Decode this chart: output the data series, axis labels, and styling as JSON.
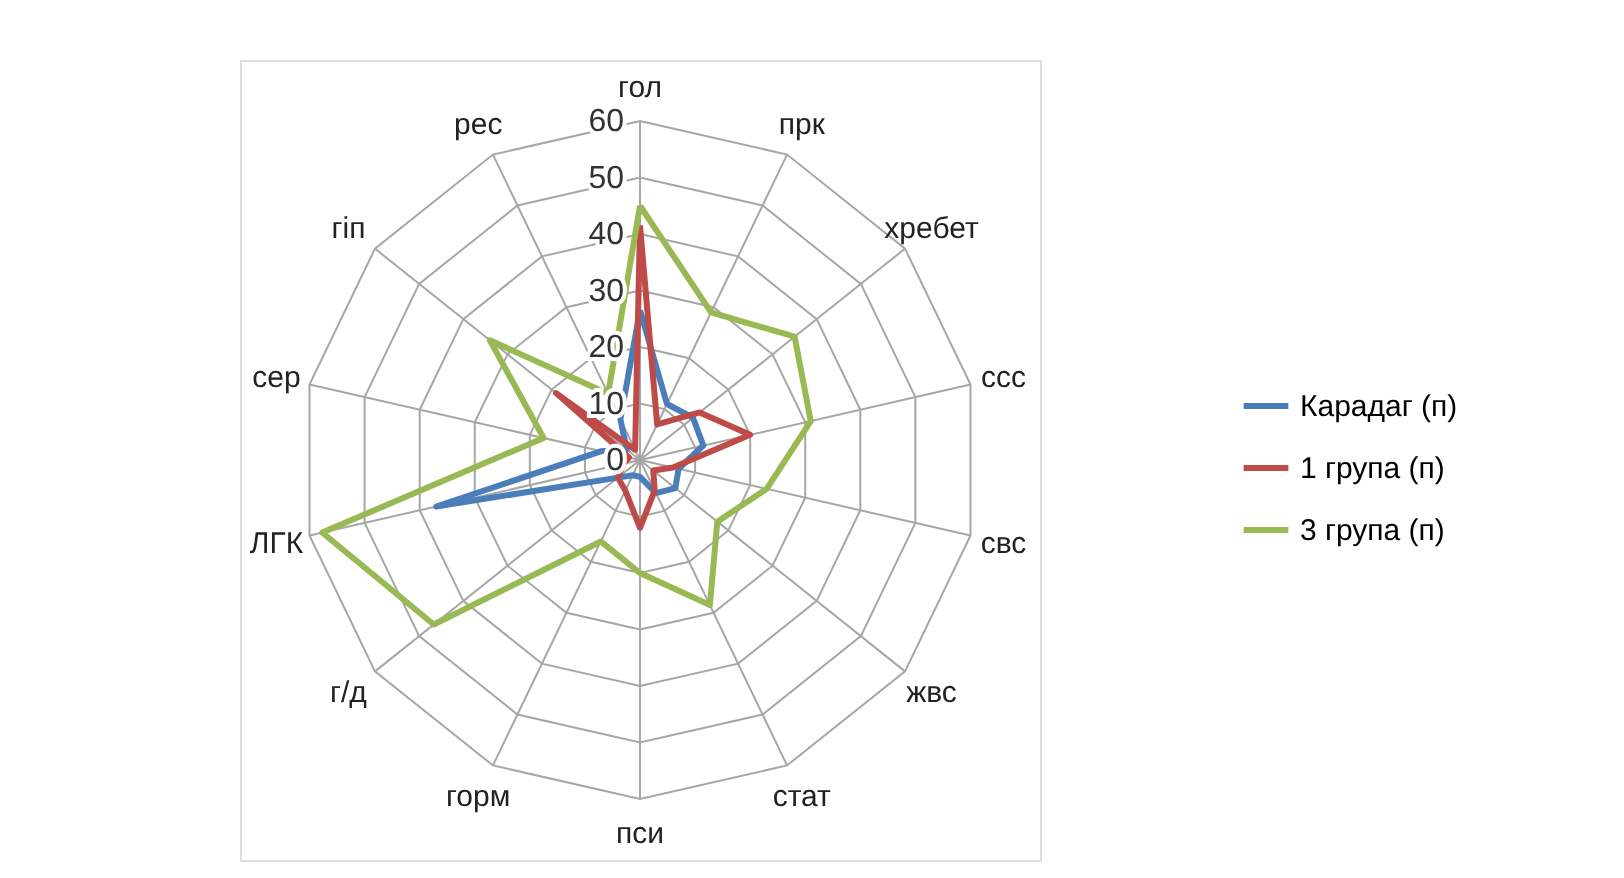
{
  "chart_data": {
    "type": "radar",
    "categories": [
      "гол",
      "прк",
      "хребет",
      "ссс",
      "свс",
      "жвс",
      "стат",
      "пси",
      "горм",
      "г/д",
      "ЛГК",
      "сер",
      "гіп",
      "рес"
    ],
    "series": [
      {
        "name": "Карадаг (п)",
        "color": "#4a7ebb",
        "values": [
          26.5,
          11,
          12,
          11.5,
          7,
          8,
          6.5,
          3,
          3,
          5,
          37,
          7,
          3,
          8
        ]
      },
      {
        "name": "1 група (п)",
        "color": "#be4b48",
        "values": [
          41.5,
          7,
          13.5,
          20,
          6,
          3,
          6,
          12,
          6,
          5,
          3,
          2,
          19,
          2
        ]
      },
      {
        "name": "3 група (п)",
        "color": "#98b954",
        "values": [
          45,
          29,
          35,
          31,
          23,
          17.5,
          28.5,
          20,
          16,
          46.7,
          57.7,
          17.5,
          34,
          13
        ]
      }
    ],
    "ylim": [
      0,
      60
    ],
    "yticks": [
      0,
      10,
      20,
      30,
      40,
      50,
      60
    ],
    "grid": true,
    "legend": "right"
  }
}
